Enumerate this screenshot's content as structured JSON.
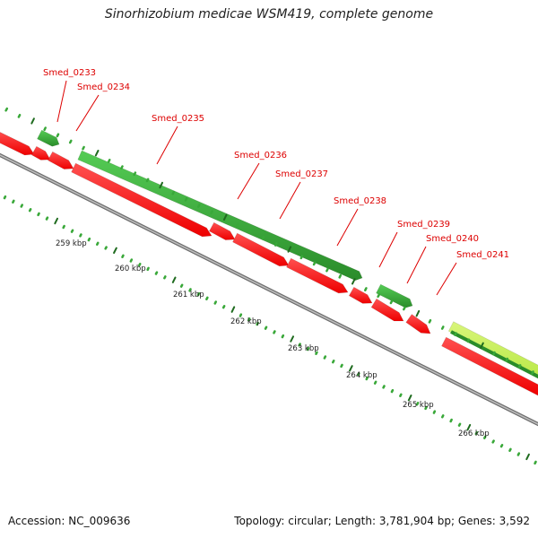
{
  "title": "Sinorhizobium medicae WSM419, complete genome",
  "footer": {
    "accession_label": "Accession:",
    "accession": "NC_009636",
    "topology_label": "Topology:",
    "topology": "circular",
    "length_label": "Length:",
    "length": "3,781,904 bp",
    "genes_label": "Genes:",
    "genes": "3,592"
  },
  "ruler_labels": [
    "259 kbp",
    "260 kbp",
    "261 kbp",
    "262 kbp",
    "263 kbp",
    "264 kbp",
    "265 kbp",
    "266 kbp"
  ],
  "gene_labels": [
    "Smed_0233",
    "Smed_0234",
    "Smed_0235",
    "Smed_0236",
    "Smed_0237",
    "Smed_0238",
    "Smed_0239",
    "Smed_0240",
    "Smed_0241"
  ],
  "colors": {
    "label_red": "#dd0000",
    "forward_gene_dark": "#2a8c2a",
    "forward_gene_light": "#55cc55",
    "highlight_gene": "#b8e845",
    "reverse_gene": "#ee0000",
    "backbone": "#8a8a8a",
    "tick_dark": "#1f6b1f",
    "tick_light": "#39a839"
  }
}
